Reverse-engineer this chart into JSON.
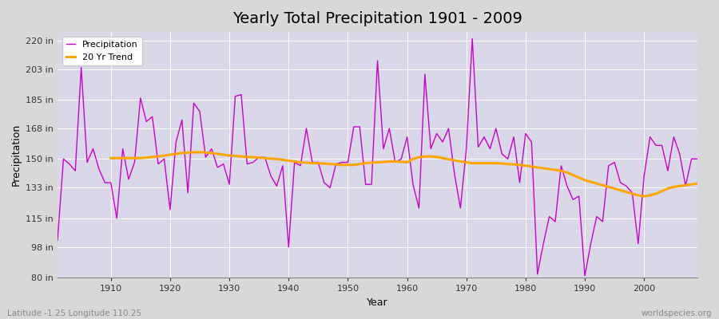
{
  "title": "Yearly Total Precipitation 1901 - 2009",
  "xlabel": "Year",
  "ylabel": "Precipitation",
  "bottom_left_label": "Latitude -1.25 Longitude 110.25",
  "bottom_right_label": "worldspecies.org",
  "ylim": [
    80,
    225
  ],
  "yticks": [
    80,
    98,
    115,
    133,
    150,
    168,
    185,
    203,
    220
  ],
  "ytick_labels": [
    "80 in",
    "98 in",
    "115 in",
    "133 in",
    "150 in",
    "168 in",
    "185 in",
    "203 in",
    "220 in"
  ],
  "years": [
    1901,
    1902,
    1903,
    1904,
    1905,
    1906,
    1907,
    1908,
    1909,
    1910,
    1911,
    1912,
    1913,
    1914,
    1915,
    1916,
    1917,
    1918,
    1919,
    1920,
    1921,
    1922,
    1923,
    1924,
    1925,
    1926,
    1927,
    1928,
    1929,
    1930,
    1931,
    1932,
    1933,
    1934,
    1935,
    1936,
    1937,
    1938,
    1939,
    1940,
    1941,
    1942,
    1943,
    1944,
    1945,
    1946,
    1947,
    1948,
    1949,
    1950,
    1951,
    1952,
    1953,
    1954,
    1955,
    1956,
    1957,
    1958,
    1959,
    1960,
    1961,
    1962,
    1963,
    1964,
    1965,
    1966,
    1967,
    1968,
    1969,
    1970,
    1971,
    1972,
    1973,
    1974,
    1975,
    1976,
    1977,
    1978,
    1979,
    1980,
    1981,
    1982,
    1983,
    1984,
    1985,
    1986,
    1987,
    1988,
    1989,
    1990,
    1991,
    1992,
    1993,
    1994,
    1995,
    1996,
    1997,
    1998,
    1999,
    2000,
    2001,
    2002,
    2003,
    2004,
    2005,
    2006,
    2007,
    2008,
    2009
  ],
  "precipitation": [
    102,
    150,
    147,
    143,
    204,
    148,
    156,
    144,
    136,
    136,
    115,
    156,
    138,
    148,
    186,
    172,
    175,
    147,
    150,
    120,
    160,
    173,
    130,
    183,
    178,
    151,
    156,
    145,
    147,
    135,
    187,
    188,
    147,
    148,
    151,
    151,
    140,
    134,
    146,
    98,
    148,
    146,
    168,
    148,
    148,
    136,
    133,
    147,
    148,
    148,
    169,
    169,
    135,
    135,
    208,
    156,
    168,
    148,
    150,
    163,
    135,
    121,
    200,
    156,
    165,
    160,
    168,
    141,
    121,
    156,
    221,
    157,
    163,
    156,
    168,
    153,
    150,
    163,
    136,
    165,
    160,
    82,
    100,
    116,
    113,
    146,
    134,
    126,
    128,
    81,
    100,
    116,
    113,
    146,
    148,
    136,
    134,
    130,
    100,
    140,
    163,
    158,
    158,
    143,
    163,
    153,
    134,
    150,
    150
  ],
  "trend_years": [
    1910,
    1911,
    1912,
    1913,
    1914,
    1915,
    1916,
    1917,
    1918,
    1919,
    1920,
    1921,
    1922,
    1923,
    1924,
    1925,
    1926,
    1927,
    1928,
    1929,
    1930,
    1931,
    1932,
    1933,
    1934,
    1935,
    1936,
    1937,
    1938,
    1939,
    1940,
    1941,
    1942,
    1943,
    1944,
    1945,
    1946,
    1947,
    1948,
    1949,
    1950,
    1951,
    1952,
    1953,
    1954,
    1955,
    1956,
    1957,
    1958,
    1959,
    1960,
    1961,
    1962,
    1963,
    1964,
    1965,
    1966,
    1967,
    1968,
    1969,
    1970,
    1971,
    1972,
    1973,
    1974,
    1975,
    1976,
    1977,
    1978,
    1979,
    1980,
    1981,
    1982,
    1983,
    1984,
    1985,
    1986,
    1987,
    1988,
    1989,
    1990,
    1991,
    1992,
    1993,
    1994,
    1995,
    1996,
    1997,
    1998,
    1999,
    2000,
    2001,
    2002,
    2003,
    2004,
    2005,
    2006,
    2007,
    2008,
    2009
  ],
  "trend": [
    150.5,
    150.5,
    150.5,
    150.5,
    150.5,
    150.5,
    150.8,
    151.2,
    151.5,
    152.0,
    152.5,
    153.0,
    153.5,
    153.8,
    154.0,
    154.0,
    153.8,
    153.5,
    153.0,
    152.5,
    152.0,
    151.8,
    151.5,
    151.2,
    151.0,
    150.8,
    150.5,
    150.2,
    150.0,
    149.5,
    149.0,
    148.5,
    148.0,
    147.8,
    147.5,
    147.5,
    147.3,
    147.0,
    146.8,
    146.5,
    146.5,
    146.5,
    147.0,
    147.5,
    147.8,
    148.0,
    148.2,
    148.5,
    148.5,
    148.3,
    148.0,
    150.0,
    151.0,
    151.5,
    151.5,
    151.2,
    150.5,
    149.8,
    149.2,
    148.5,
    148.0,
    147.5,
    147.5,
    147.5,
    147.5,
    147.5,
    147.3,
    147.0,
    146.8,
    146.5,
    146.0,
    145.5,
    145.0,
    144.5,
    144.0,
    143.5,
    143.0,
    142.0,
    140.5,
    139.0,
    137.5,
    136.5,
    135.5,
    134.5,
    133.5,
    132.5,
    131.5,
    130.5,
    129.5,
    128.5,
    128.0,
    128.5,
    129.5,
    131.0,
    132.5,
    133.5,
    134.0,
    134.5,
    135.0,
    135.5
  ],
  "precip_color": "#cc00cc",
  "trend_color": "#FFA500",
  "bg_color": "#d8d8d8",
  "plot_bg_color": "#d8d8e8",
  "grid_color": "#ffffff",
  "title_fontsize": 14,
  "label_fontsize": 9,
  "tick_fontsize": 8,
  "legend_fontsize": 8
}
